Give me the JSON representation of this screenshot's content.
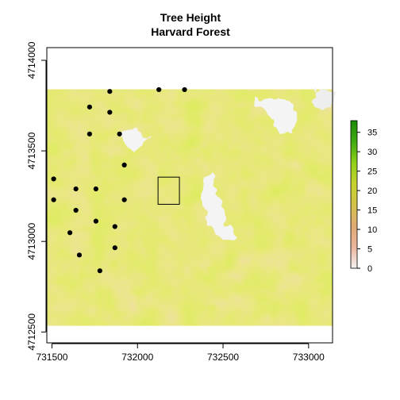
{
  "chart_data": {
    "type": "heatmap",
    "title": "Tree Height",
    "subtitle": "Harvard Forest",
    "xlabel": "",
    "ylabel": "",
    "xlim": [
      731470,
      733140
    ],
    "ylim": [
      4712440,
      4714070
    ],
    "x_ticks": [
      731500,
      732000,
      732500,
      733000
    ],
    "y_ticks": [
      4712500,
      4713000,
      4713500,
      4714000
    ],
    "x_tick_labels": [
      "731500",
      "732000",
      "732500",
      "733000"
    ],
    "y_tick_labels": [
      "4712500",
      "4713000",
      "4713500",
      "4714000"
    ],
    "raster_extent": {
      "xmin": 731453,
      "xmax": 733150,
      "ymin": 4712536,
      "ymax": 4713838
    },
    "legend": {
      "placement": "right",
      "range": [
        0,
        38
      ],
      "ticks": [
        0,
        5,
        10,
        15,
        20,
        25,
        30,
        35
      ],
      "tick_labels": [
        "0",
        "5",
        "10",
        "15",
        "20",
        "25",
        "30",
        "35"
      ],
      "colors": [
        "#f2f2f2",
        "#ebb59c",
        "#e0aa75",
        "#d4c14a",
        "#c6d32c",
        "#8fcf19",
        "#3fab11",
        "#1a8a08"
      ]
    },
    "no_data_areas": [
      {
        "name": "cleared-top-right",
        "x": 732870,
        "y": 4713780
      },
      {
        "name": "cleared-mid-left",
        "x": 732000,
        "y": 4713570
      },
      {
        "name": "open-central",
        "x": 732440,
        "y": 4713100
      }
    ],
    "box": {
      "xmin": 732120,
      "xmax": 732245,
      "ymin": 4713205,
      "ymax": 4713355
    },
    "points": [
      {
        "x": 731838,
        "y": 4713828
      },
      {
        "x": 732125,
        "y": 4713838
      },
      {
        "x": 732275,
        "y": 4713838
      },
      {
        "x": 731720,
        "y": 4713742
      },
      {
        "x": 731838,
        "y": 4713713
      },
      {
        "x": 731720,
        "y": 4713593
      },
      {
        "x": 731895,
        "y": 4713593
      },
      {
        "x": 731923,
        "y": 4713422
      },
      {
        "x": 731510,
        "y": 4713345
      },
      {
        "x": 731640,
        "y": 4713290
      },
      {
        "x": 731757,
        "y": 4713290
      },
      {
        "x": 731510,
        "y": 4713230
      },
      {
        "x": 731923,
        "y": 4713230
      },
      {
        "x": 731640,
        "y": 4713172
      },
      {
        "x": 731757,
        "y": 4713112
      },
      {
        "x": 731868,
        "y": 4713082
      },
      {
        "x": 731605,
        "y": 4713048
      },
      {
        "x": 731868,
        "y": 4712965
      },
      {
        "x": 731660,
        "y": 4712925
      },
      {
        "x": 731780,
        "y": 4712838
      }
    ],
    "grid": false
  }
}
